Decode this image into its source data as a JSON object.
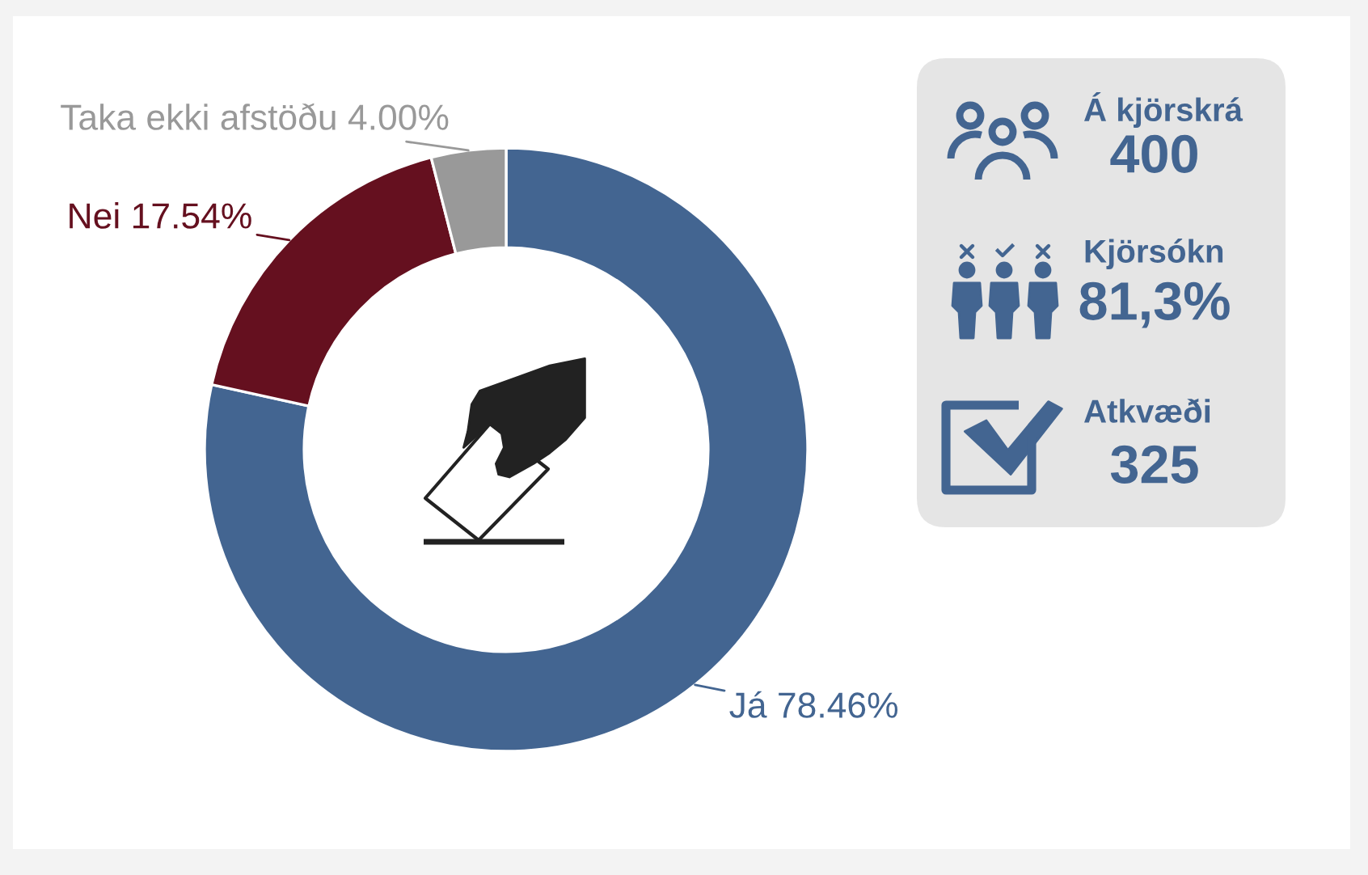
{
  "chart_data": [
    {
      "type": "donut",
      "categories": [
        "Já",
        "Nei",
        "Taka ekki afstöðu"
      ],
      "values": [
        78.46,
        17.54,
        4.0
      ],
      "value_labels": [
        "78.46%",
        "17.54%",
        "4.00%"
      ],
      "colors": [
        "#436591",
        "#65101f",
        "#999999"
      ]
    },
    {
      "type": "other",
      "annotations": [
        "Á kjörskrá",
        "400",
        "Kjörsókn",
        "81,3%",
        "Atkvæði",
        "325"
      ]
    }
  ]
}
